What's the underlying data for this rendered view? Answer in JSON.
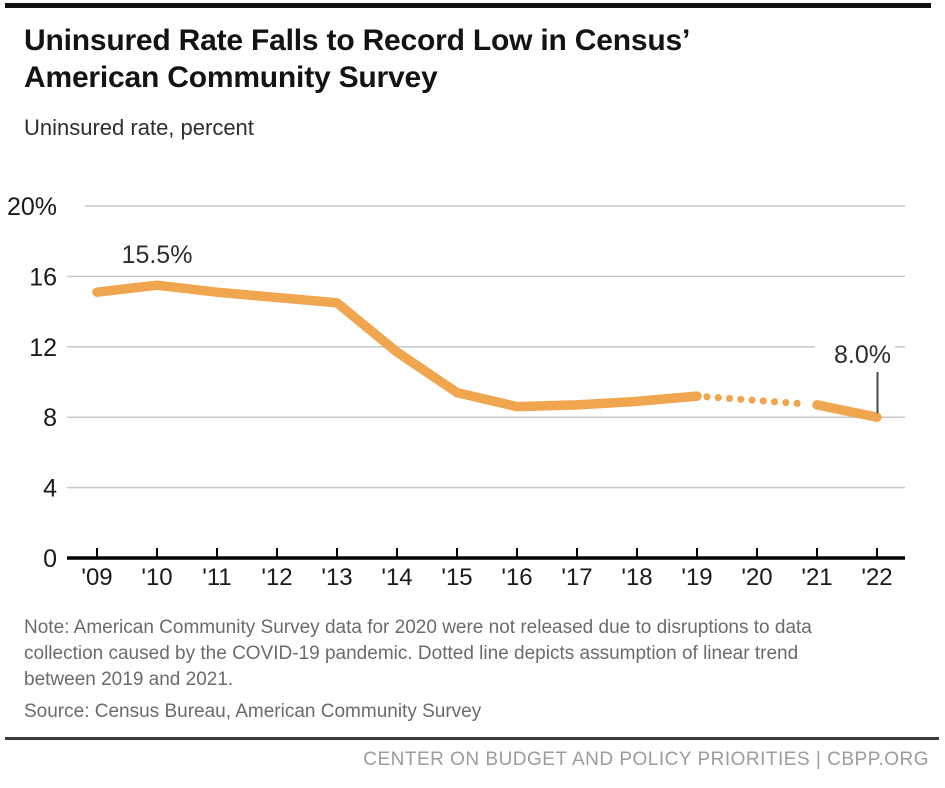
{
  "header": {
    "title_line1": "Uninsured Rate Falls to Record Low in Census’",
    "title_line2": "American Community Survey",
    "subtitle": "Uninsured rate, percent"
  },
  "chart_data": {
    "type": "line",
    "title": "Uninsured Rate Falls to Record Low in Census’ American Community Survey",
    "ylabel": "Uninsured rate, percent",
    "xlabel": "",
    "categories": [
      "'09",
      "'10",
      "'11",
      "'12",
      "'13",
      "'14",
      "'15",
      "'16",
      "'17",
      "'18",
      "'19",
      "'20",
      "'21",
      "'22"
    ],
    "series": [
      {
        "name": "Uninsured rate, percent",
        "values": [
          15.1,
          15.5,
          15.1,
          14.8,
          14.5,
          11.7,
          9.4,
          8.6,
          8.7,
          8.9,
          9.2,
          null,
          8.7,
          8.0
        ]
      }
    ],
    "dotted_between": [
      "'19",
      "'21"
    ],
    "missing_data_category": "'20",
    "yticks": [
      0,
      4,
      8,
      12,
      16,
      20
    ],
    "ytick_labels": [
      "0",
      "4",
      "8",
      "12",
      "16",
      "20%"
    ],
    "ylim": [
      0,
      21
    ],
    "grid": true,
    "legend_position": "none",
    "annotations": [
      {
        "category": "'10",
        "label": "15.5%",
        "callout_line": false
      },
      {
        "category": "'22",
        "label": "8.0%",
        "callout_line": true
      }
    ]
  },
  "colors": {
    "line": "#EFA64F",
    "grid": "#C8C8C8",
    "axis": "#000000",
    "tick_label": "#1A1A1A",
    "annotation_text": "#2E2E2E",
    "callout_line": "#4A4A4A",
    "note_text": "#6B6B6B",
    "credit_text": "#9B9BA0"
  },
  "footer": {
    "note": "Note: American Community Survey data for 2020 were not released due to disruptions to data collection caused by the COVID-19 pandemic. Dotted line depicts assumption of linear trend between 2019 and 2021.",
    "source": "Source: Census Bureau, American Community Survey",
    "credit": "CENTER ON BUDGET AND POLICY PRIORITIES | CBPP.ORG"
  }
}
